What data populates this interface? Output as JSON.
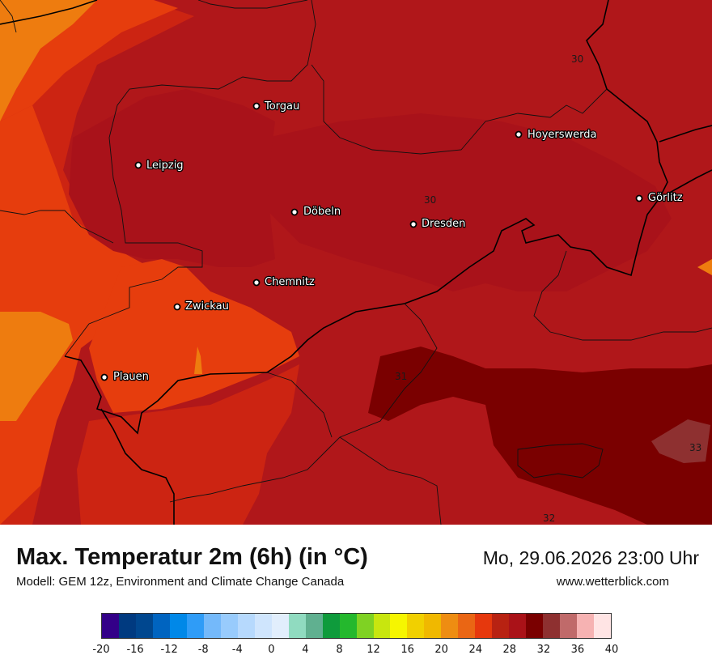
{
  "title": "Max. Temperatur 2m (6h) (in °C)",
  "subtitle": "Modell: GEM 12z, Environment and Climate Change Canada",
  "datetime": "Mo, 29.06.2026 23:00 Uhr",
  "website": "www.wetterblick.com",
  "cities": [
    "Torgau",
    "Hoyerswerda",
    "Leipzig",
    "Görlitz",
    "Döbeln",
    "Dresden",
    "Chemnitz",
    "Zwickau",
    "Plauen"
  ],
  "isolines": [
    "30",
    "30",
    "31",
    "32",
    "33"
  ],
  "legend": {
    "colors": [
      "#330088",
      "#003a80",
      "#00478f",
      "#0064c0",
      "#0088e8",
      "#2f9cf7",
      "#74b9fa",
      "#98cbfc",
      "#b6d9fd",
      "#cfe5fd",
      "#e1eefc",
      "#90dbc0",
      "#60b090",
      "#0f9b3c",
      "#24b82d",
      "#7fd223",
      "#c8e60f",
      "#f6f600",
      "#f1d000",
      "#f0b800",
      "#ee8d12",
      "#ea6614",
      "#e6380d",
      "#b82212",
      "#aa1218",
      "#7a0000",
      "#8e3030",
      "#c06a6a",
      "#f6b2b2",
      "#ffe4e4"
    ],
    "ticks": [
      "-20",
      "-16",
      "-12",
      "-8",
      "-4",
      "0",
      "4",
      "8",
      "12",
      "16",
      "20",
      "24",
      "28",
      "32",
      "36",
      "40"
    ]
  }
}
